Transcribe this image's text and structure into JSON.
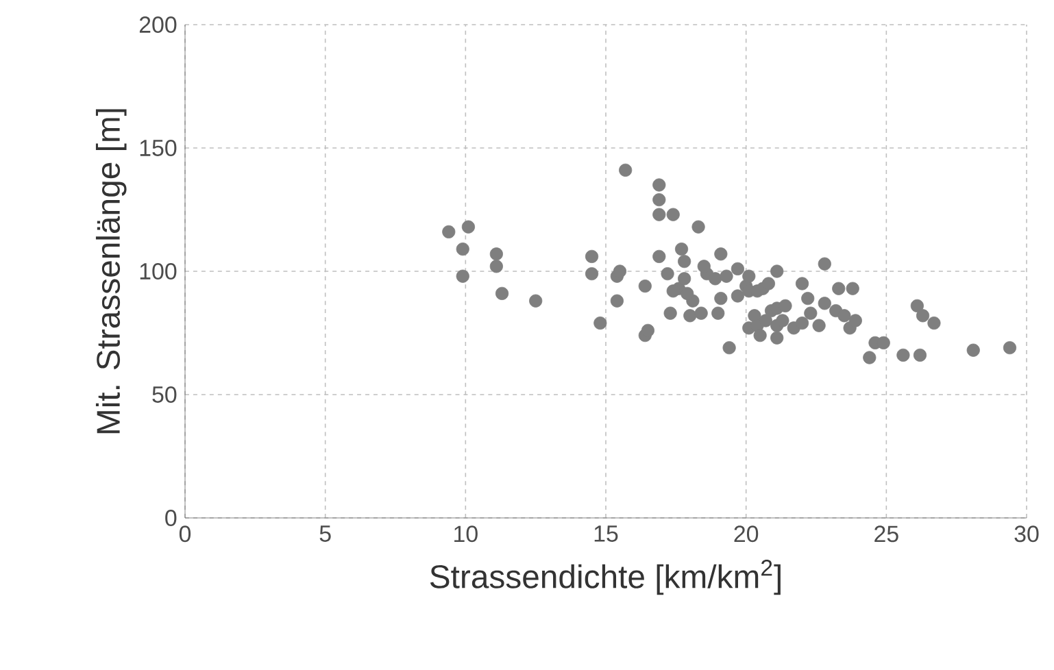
{
  "chart_data": {
    "type": "scatter",
    "xlabel": "Strassendichte [km/km$^{2}$]",
    "ylabel": "Mit. Strassenlänge [m]",
    "xlim": [
      0,
      30
    ],
    "ylim": [
      0,
      200
    ],
    "xticks": [
      0,
      5,
      10,
      15,
      20,
      25,
      30
    ],
    "yticks": [
      0,
      50,
      100,
      150,
      200
    ],
    "grid": true,
    "series": [
      {
        "color": "#7f7f7f",
        "x": [
          9.4,
          9.9,
          10.1,
          9.9,
          11.1,
          11.1,
          11.3,
          12.5,
          14.5,
          14.5,
          14.8,
          15.4,
          15.5,
          15.4,
          15.7,
          16.4,
          16.5,
          16.4,
          16.9,
          16.9,
          16.9,
          17.4,
          16.9,
          17.2,
          17.3,
          17.6,
          17.4,
          17.7,
          17.8,
          18.3,
          17.8,
          18.1,
          17.9,
          18.0,
          18.4,
          18.6,
          18.5,
          18.9,
          19.1,
          19.1,
          19.3,
          19.0,
          19.4,
          19.7,
          20.0,
          19.7,
          20.1,
          20.1,
          20.4,
          20.1,
          20.3,
          20.4,
          20.5,
          20.6,
          20.8,
          20.9,
          20.7,
          21.1,
          21.1,
          21.3,
          21.1,
          21.1,
          21.4,
          21.7,
          22.0,
          22.0,
          22.2,
          22.3,
          22.8,
          22.6,
          22.8,
          23.2,
          23.3,
          23.5,
          23.7,
          23.9,
          23.8,
          24.4,
          24.6,
          24.9,
          25.6,
          26.1,
          26.3,
          26.2,
          26.7,
          28.1,
          29.4
        ],
        "values": [
          116,
          109,
          118,
          98,
          107,
          102,
          91,
          88,
          106,
          99,
          79,
          98,
          100,
          88,
          141,
          74,
          76,
          94,
          135,
          129,
          123,
          123,
          106,
          99,
          83,
          93,
          92,
          109,
          97,
          118,
          104,
          88,
          91,
          82,
          83,
          99,
          102,
          97,
          107,
          89,
          98,
          83,
          69,
          101,
          94,
          90,
          92,
          98,
          92,
          77,
          82,
          78,
          74,
          93,
          95,
          84,
          80,
          73,
          78,
          80,
          85,
          100,
          86,
          77,
          79,
          95,
          89,
          83,
          103,
          78,
          87,
          84,
          93,
          82,
          77,
          80,
          93,
          65,
          71,
          71,
          66,
          86,
          82,
          66,
          79,
          68,
          69
        ]
      }
    ]
  }
}
